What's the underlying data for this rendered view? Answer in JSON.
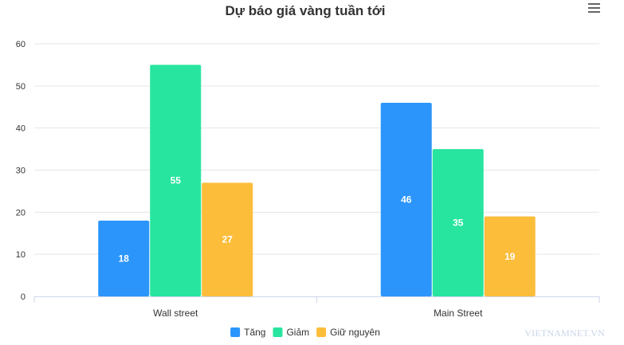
{
  "chart_data": {
    "type": "bar",
    "title": "Dự báo giá vàng tuần tới",
    "categories": [
      "Wall street",
      "Main Street"
    ],
    "series": [
      {
        "name": "Tăng",
        "values": [
          18,
          46
        ],
        "color": "#2b95fb"
      },
      {
        "name": "Giảm",
        "values": [
          55,
          35
        ],
        "color": "#27e59f"
      },
      {
        "name": "Giữ nguyên",
        "values": [
          27,
          19
        ],
        "color": "#fcbd3b"
      }
    ],
    "ylim": [
      0,
      60
    ],
    "yticks": [
      0,
      10,
      20,
      30,
      40,
      50,
      60
    ],
    "xlabel": "",
    "ylabel": "",
    "grid": true,
    "data_labels": true,
    "legend_position": "bottom-center"
  },
  "menu": {
    "icon": "hamburger-menu-icon"
  },
  "watermark": "VIETNAMNET.VN"
}
